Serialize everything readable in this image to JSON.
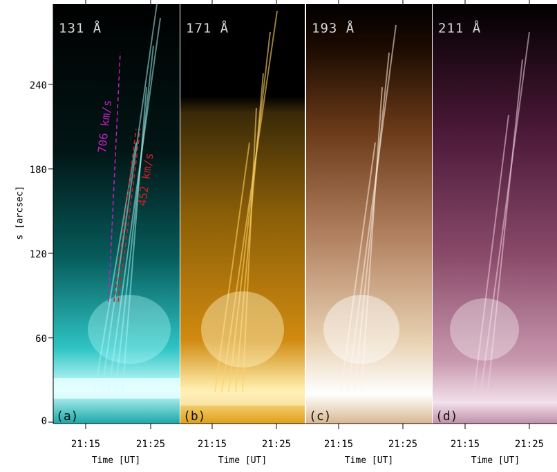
{
  "figure": {
    "y_axis": {
      "title": "s [arcsec]",
      "ticks": [
        "240",
        "180",
        "120",
        "60",
        "0"
      ]
    },
    "x_axis": {
      "title": "Time [UT]",
      "ticks": [
        "21:15",
        "21:25"
      ]
    },
    "speed_labels": {
      "magenta": "706 km/s",
      "red": "452 km/s"
    },
    "speed_colors": {
      "magenta": "#c020c0",
      "red": "#d02020"
    },
    "panels": [
      {
        "id": "a",
        "wavelength": "131 Å",
        "label": "(a)",
        "base": "#0b8f8f",
        "bright": "#c8ffff",
        "top": "#000000"
      },
      {
        "id": "b",
        "wavelength": "171 Å",
        "label": "(b)",
        "base": "#e89a10",
        "bright": "#fff2c0",
        "top": "#000000"
      },
      {
        "id": "c",
        "wavelength": "193 Å",
        "label": "(c)",
        "base": "#b07038",
        "bright": "#fff6e6",
        "top": "#000000"
      },
      {
        "id": "d",
        "wavelength": "211 Å",
        "label": "(d)",
        "base": "#8a4a6a",
        "bright": "#f8e6f0",
        "top": "#000000"
      }
    ]
  }
}
